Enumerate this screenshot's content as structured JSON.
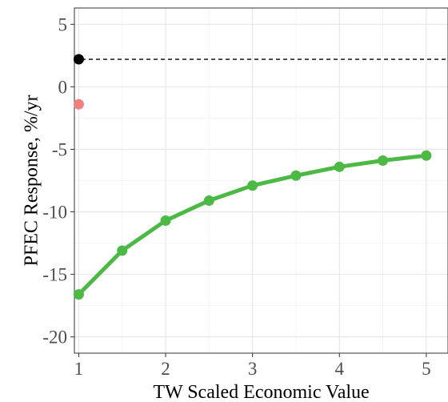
{
  "chart_data": {
    "type": "line",
    "title": "",
    "xlabel": "TW Scaled Economic Value",
    "ylabel": "PFEC Response, %/yr",
    "xlim": [
      0.95,
      5.25
    ],
    "ylim": [
      -21.3,
      6.3
    ],
    "x_ticks": [
      1,
      2,
      3,
      4,
      5
    ],
    "y_ticks": [
      5,
      0,
      -5,
      -10,
      -15,
      -20
    ],
    "grid": true,
    "legend": "none",
    "reference_line": {
      "y": 2.2,
      "style": "dashed",
      "color": "#000000"
    },
    "points": [
      {
        "x": 1,
        "y": 2.2,
        "color": "#000000"
      },
      {
        "x": 1,
        "y": -1.4,
        "color": "#f08080"
      }
    ],
    "series": [
      {
        "color": "#4cb944",
        "x": [
          1,
          1.5,
          2,
          2.5,
          3,
          3.5,
          4,
          4.5,
          5
        ],
        "y": [
          -16.6,
          -13.1,
          -10.7,
          -9.1,
          -7.9,
          -7.1,
          -6.4,
          -5.9,
          -5.5
        ]
      }
    ]
  }
}
